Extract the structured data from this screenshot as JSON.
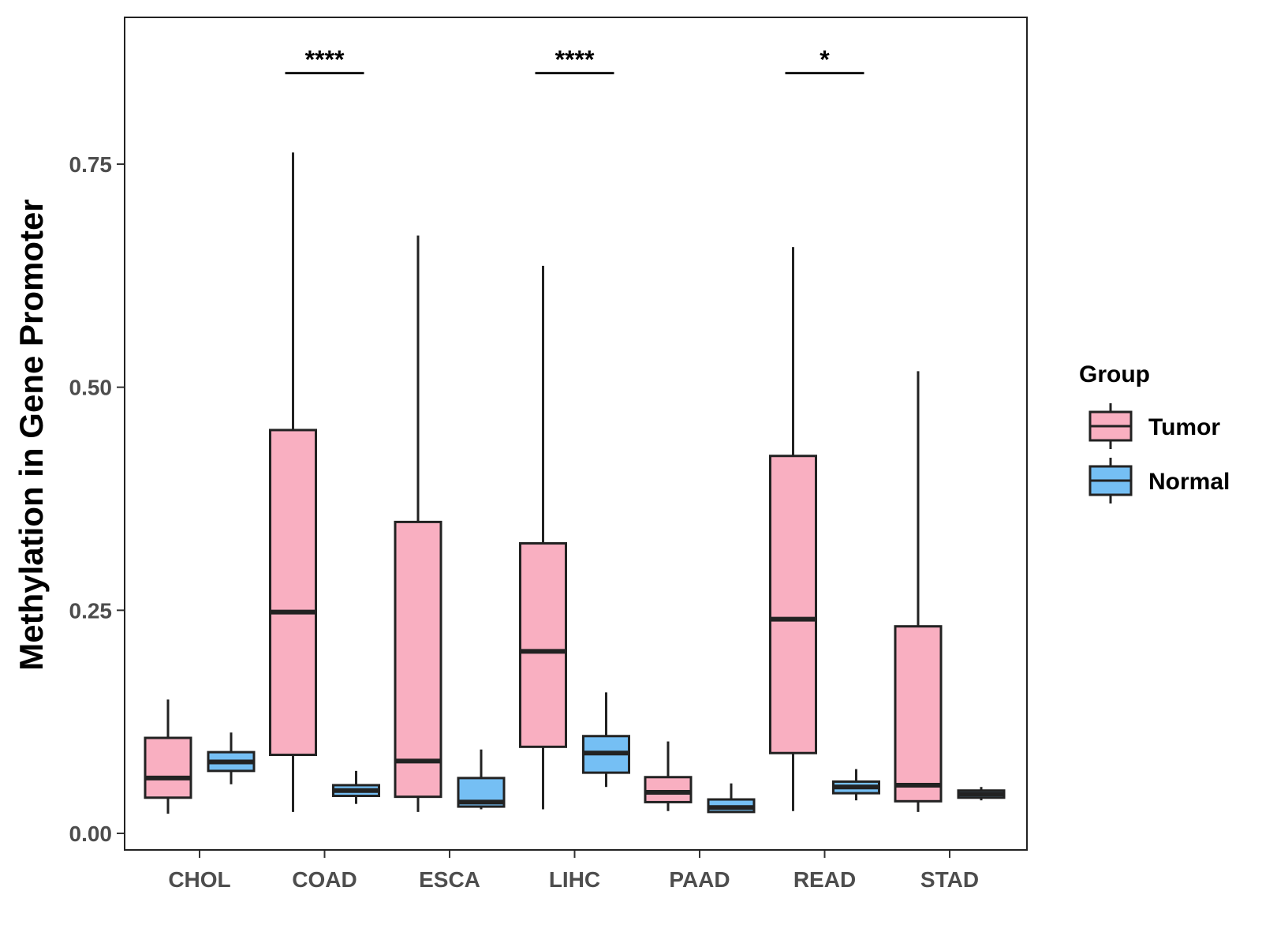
{
  "chart_data": {
    "type": "boxplot",
    "title": "",
    "xlabel": "",
    "ylabel": "Methylation in Gene Promoter",
    "ylim": [
      -0.02,
      0.915
    ],
    "yticks": [
      0.0,
      0.25,
      0.5,
      0.75
    ],
    "ytick_labels": [
      "0.00",
      "0.25",
      "0.50",
      "0.75"
    ],
    "categories": [
      "CHOL",
      "COAD",
      "ESCA",
      "LIHC",
      "PAAD",
      "READ",
      "STAD"
    ],
    "legend": {
      "title": "Group",
      "position": "right",
      "entries": [
        {
          "name": "Tumor",
          "color": "#F9AFC1"
        },
        {
          "name": "Normal",
          "color": "#75BFF4"
        }
      ]
    },
    "series": [
      {
        "name": "Tumor",
        "color": "#F9AFC1",
        "boxes": [
          {
            "category": "CHOL",
            "min": 0.022,
            "q1": 0.04,
            "median": 0.062,
            "q3": 0.107,
            "max": 0.15
          },
          {
            "category": "COAD",
            "min": 0.024,
            "q1": 0.088,
            "median": 0.248,
            "q3": 0.452,
            "max": 0.763
          },
          {
            "category": "ESCA",
            "min": 0.024,
            "q1": 0.041,
            "median": 0.081,
            "q3": 0.349,
            "max": 0.67
          },
          {
            "category": "LIHC",
            "min": 0.027,
            "q1": 0.097,
            "median": 0.204,
            "q3": 0.325,
            "max": 0.636
          },
          {
            "category": "PAAD",
            "min": 0.025,
            "q1": 0.035,
            "median": 0.046,
            "q3": 0.063,
            "max": 0.103
          },
          {
            "category": "READ",
            "min": 0.025,
            "q1": 0.09,
            "median": 0.24,
            "q3": 0.423,
            "max": 0.657
          },
          {
            "category": "STAD",
            "min": 0.024,
            "q1": 0.036,
            "median": 0.054,
            "q3": 0.232,
            "max": 0.518
          }
        ]
      },
      {
        "name": "Normal",
        "color": "#75BFF4",
        "boxes": [
          {
            "category": "CHOL",
            "min": 0.055,
            "q1": 0.07,
            "median": 0.08,
            "q3": 0.091,
            "max": 0.113
          },
          {
            "category": "COAD",
            "min": 0.033,
            "q1": 0.042,
            "median": 0.048,
            "q3": 0.054,
            "max": 0.07
          },
          {
            "category": "ESCA",
            "min": 0.027,
            "q1": 0.03,
            "median": 0.035,
            "q3": 0.062,
            "max": 0.094
          },
          {
            "category": "LIHC",
            "min": 0.052,
            "q1": 0.068,
            "median": 0.09,
            "q3": 0.109,
            "max": 0.158
          },
          {
            "category": "PAAD",
            "min": 0.023,
            "q1": 0.024,
            "median": 0.029,
            "q3": 0.038,
            "max": 0.056
          },
          {
            "category": "READ",
            "min": 0.037,
            "q1": 0.045,
            "median": 0.052,
            "q3": 0.058,
            "max": 0.072
          },
          {
            "category": "STAD",
            "min": 0.037,
            "q1": 0.04,
            "median": 0.044,
            "q3": 0.048,
            "max": 0.052
          }
        ]
      }
    ],
    "significance": [
      {
        "category": "COAD",
        "label": "****",
        "y": 0.852
      },
      {
        "category": "LIHC",
        "label": "****",
        "y": 0.852
      },
      {
        "category": "READ",
        "label": "*",
        "y": 0.852
      }
    ]
  }
}
